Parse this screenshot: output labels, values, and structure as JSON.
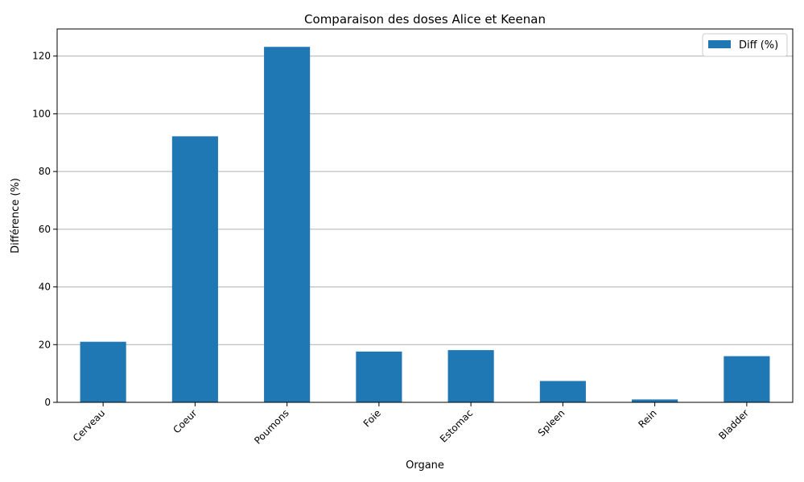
{
  "chart_data": {
    "type": "bar",
    "title": "Comparaison des doses Alice et Keenan",
    "xlabel": "Organe",
    "ylabel": "Différence (%)",
    "categories": [
      "Cerveau",
      "Coeur",
      "Poumons",
      "Foie",
      "Estomac",
      "Spleen",
      "Rein",
      "Bladder"
    ],
    "series": [
      {
        "name": "Diff (%)",
        "values": [
          21.0,
          92.2,
          123.2,
          17.6,
          18.1,
          7.4,
          1.0,
          16.0
        ],
        "color": "#1f77b4"
      }
    ],
    "ylim": [
      0,
      129.4
    ],
    "yticks": [
      0,
      20,
      40,
      60,
      80,
      100,
      120
    ],
    "grid": "y",
    "legend": "top-right",
    "tick_rotation": 45
  }
}
